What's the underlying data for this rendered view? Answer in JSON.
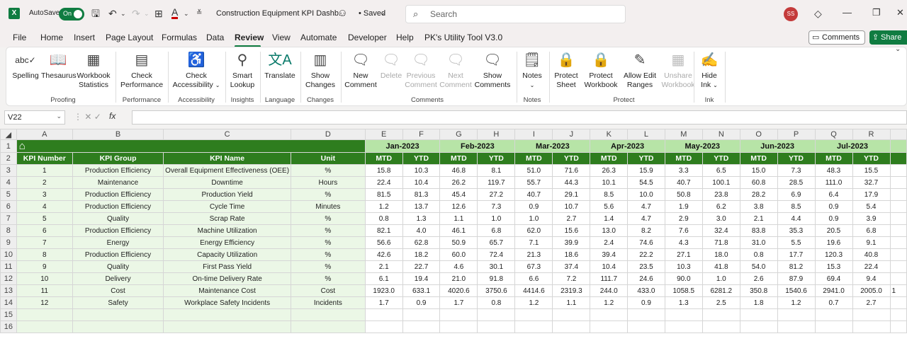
{
  "titlebar": {
    "app_logo": "X",
    "autosave_label": "AutoSave",
    "autosave_state": "On",
    "doc_title": "Construction Equipment KPI Dashb...",
    "saved_status": "• Saved",
    "search_placeholder": "Search",
    "user_initials": "SS"
  },
  "menu": {
    "items": [
      "File",
      "Home",
      "Insert",
      "Page Layout",
      "Formulas",
      "Data",
      "Review",
      "View",
      "Automate",
      "Developer",
      "Help",
      "PK's Utility Tool V3.0"
    ],
    "active": "Review",
    "comments_label": "Comments",
    "share_label": "Share"
  },
  "ribbon": {
    "spelling": "Spelling",
    "thesaurus": "Thesaurus",
    "workbook_statistics_1": "Workbook",
    "workbook_statistics_2": "Statistics",
    "group_proofing": "Proofing",
    "check_performance_1": "Check",
    "check_performance_2": "Performance",
    "group_performance": "Performance",
    "check_accessibility_1": "Check",
    "check_accessibility_2": "Accessibility",
    "group_accessibility": "Accessibility",
    "smart_lookup_1": "Smart",
    "smart_lookup_2": "Lookup",
    "group_insights": "Insights",
    "translate": "Translate",
    "group_language": "Language",
    "show_changes_1": "Show",
    "show_changes_2": "Changes",
    "group_changes": "Changes",
    "new_comment_1": "New",
    "new_comment_2": "Comment",
    "delete": "Delete",
    "previous_comment_1": "Previous",
    "previous_comment_2": "Comment",
    "next_comment_1": "Next",
    "next_comment_2": "Comment",
    "show_comments_1": "Show",
    "show_comments_2": "Comments",
    "group_comments": "Comments",
    "notes": "Notes",
    "group_notes": "Notes",
    "protect_sheet_1": "Protect",
    "protect_sheet_2": "Sheet",
    "protect_workbook_1": "Protect",
    "protect_workbook_2": "Workbook",
    "allow_edit_1": "Allow Edit",
    "allow_edit_2": "Ranges",
    "unshare_1": "Unshare",
    "unshare_2": "Workbook",
    "group_protect": "Protect",
    "hide_ink_1": "Hide",
    "hide_ink_2": "Ink",
    "group_ink": "Ink"
  },
  "formula_bar": {
    "name_box": "V22",
    "fx": "fx",
    "formula": ""
  },
  "sheet": {
    "columns": [
      "A",
      "B",
      "C",
      "D",
      "E",
      "F",
      "G",
      "H",
      "I",
      "J",
      "K",
      "L",
      "M",
      "N",
      "O",
      "P",
      "Q",
      "R"
    ],
    "months": [
      "Jan-2023",
      "Feb-2023",
      "Mar-2023",
      "Apr-2023",
      "May-2023",
      "Jun-2023",
      "Jul-2023"
    ],
    "headers": {
      "kpi_number": "KPI Number",
      "kpi_group": "KPI Group",
      "kpi_name": "KPI Name",
      "unit": "Unit",
      "mtd": "MTD",
      "ytd": "YTD"
    },
    "rows": [
      {
        "num": "1",
        "group": "Production Efficiency",
        "name": "Overall Equipment Effectiveness (OEE)",
        "unit": "%",
        "vals": [
          "15.8",
          "10.3",
          "46.8",
          "8.1",
          "51.0",
          "71.6",
          "26.3",
          "15.9",
          "3.3",
          "6.5",
          "15.0",
          "7.3",
          "48.3",
          "15.5"
        ]
      },
      {
        "num": "2",
        "group": "Maintenance",
        "name": "Downtime",
        "unit": "Hours",
        "vals": [
          "22.4",
          "10.4",
          "26.2",
          "119.7",
          "55.7",
          "44.3",
          "10.1",
          "54.5",
          "40.7",
          "100.1",
          "60.8",
          "28.5",
          "111.0",
          "32.7"
        ]
      },
      {
        "num": "3",
        "group": "Production Efficiency",
        "name": "Production Yield",
        "unit": "%",
        "vals": [
          "81.5",
          "81.3",
          "45.4",
          "27.2",
          "40.7",
          "29.1",
          "8.5",
          "10.0",
          "50.8",
          "23.8",
          "28.2",
          "6.9",
          "6.4",
          "17.9"
        ]
      },
      {
        "num": "4",
        "group": "Production Efficiency",
        "name": "Cycle Time",
        "unit": "Minutes",
        "vals": [
          "1.2",
          "13.7",
          "12.6",
          "7.3",
          "0.9",
          "10.7",
          "5.6",
          "4.7",
          "1.9",
          "6.2",
          "3.8",
          "8.5",
          "0.9",
          "5.4"
        ]
      },
      {
        "num": "5",
        "group": "Quality",
        "name": "Scrap Rate",
        "unit": "%",
        "vals": [
          "0.8",
          "1.3",
          "1.1",
          "1.0",
          "1.0",
          "2.7",
          "1.4",
          "4.7",
          "2.9",
          "3.0",
          "2.1",
          "4.4",
          "0.9",
          "3.9"
        ]
      },
      {
        "num": "6",
        "group": "Production Efficiency",
        "name": "Machine Utilization",
        "unit": "%",
        "vals": [
          "82.1",
          "4.0",
          "46.1",
          "6.8",
          "62.0",
          "15.6",
          "13.0",
          "8.2",
          "7.6",
          "32.4",
          "83.8",
          "35.3",
          "20.5",
          "6.8"
        ]
      },
      {
        "num": "7",
        "group": "Energy",
        "name": "Energy Efficiency",
        "unit": "%",
        "vals": [
          "56.6",
          "62.8",
          "50.9",
          "65.7",
          "7.1",
          "39.9",
          "2.4",
          "74.6",
          "4.3",
          "71.8",
          "31.0",
          "5.5",
          "19.6",
          "9.1"
        ]
      },
      {
        "num": "8",
        "group": "Production Efficiency",
        "name": "Capacity Utilization",
        "unit": "%",
        "vals": [
          "42.6",
          "18.2",
          "60.0",
          "72.4",
          "21.3",
          "18.6",
          "39.4",
          "22.2",
          "27.1",
          "18.0",
          "0.8",
          "17.7",
          "120.3",
          "40.8"
        ]
      },
      {
        "num": "9",
        "group": "Quality",
        "name": "First Pass Yield",
        "unit": "%",
        "vals": [
          "2.1",
          "22.7",
          "4.6",
          "30.1",
          "67.3",
          "37.4",
          "10.4",
          "23.5",
          "10.3",
          "41.8",
          "54.0",
          "81.2",
          "15.3",
          "22.4"
        ]
      },
      {
        "num": "10",
        "group": "Delivery",
        "name": "On-time Delivery Rate",
        "unit": "%",
        "vals": [
          "6.1",
          "19.4",
          "21.0",
          "91.8",
          "6.6",
          "7.2",
          "111.7",
          "24.6",
          "90.0",
          "1.0",
          "2.6",
          "87.9",
          "69.4",
          "9.4"
        ]
      },
      {
        "num": "11",
        "group": "Cost",
        "name": "Maintenance Cost",
        "unit": "Cost",
        "vals": [
          "1923.0",
          "633.1",
          "4020.6",
          "3750.6",
          "4414.6",
          "2319.3",
          "244.0",
          "433.0",
          "1058.5",
          "6281.2",
          "350.8",
          "1540.6",
          "2941.0",
          "2005.0"
        ]
      },
      {
        "num": "12",
        "group": "Safety",
        "name": "Workplace Safety Incidents",
        "unit": "Incidents",
        "vals": [
          "1.7",
          "0.9",
          "1.7",
          "0.8",
          "1.2",
          "1.1",
          "1.2",
          "0.9",
          "1.3",
          "2.5",
          "1.8",
          "1.2",
          "0.7",
          "2.7"
        ]
      }
    ],
    "trailing_digit": "1"
  }
}
